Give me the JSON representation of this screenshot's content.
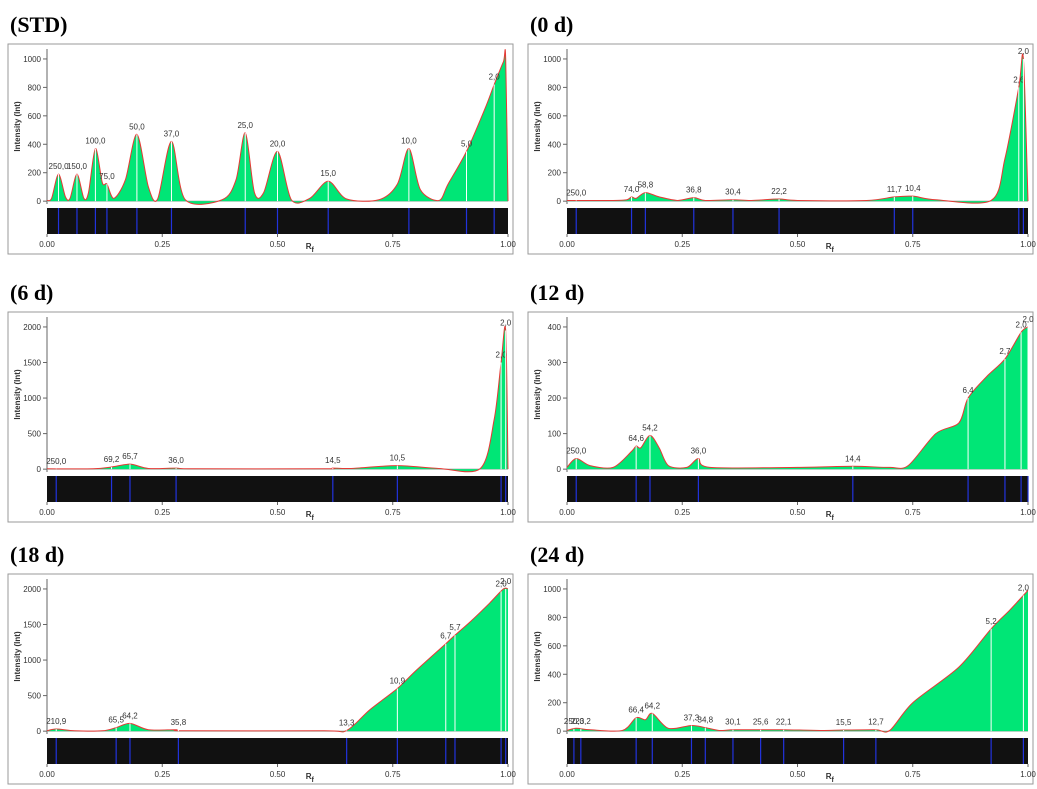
{
  "chart_data": [
    {
      "type": "area",
      "title": "(STD)",
      "y_label": "Intensity (Int)",
      "x_label": "R",
      "x_label_subscript": "f",
      "x": [
        0,
        0.01,
        0.025,
        0.04,
        0.05,
        0.065,
        0.08,
        0.09,
        0.105,
        0.12,
        0.13,
        0.145,
        0.17,
        0.195,
        0.22,
        0.24,
        0.27,
        0.3,
        0.38,
        0.41,
        0.43,
        0.45,
        0.47,
        0.5,
        0.53,
        0.57,
        0.61,
        0.65,
        0.72,
        0.76,
        0.785,
        0.81,
        0.85,
        0.87,
        0.91,
        0.95,
        0.97,
        0.99,
        0.995,
        1.0
      ],
      "values": [
        5,
        20,
        190,
        30,
        20,
        190,
        20,
        60,
        370,
        130,
        120,
        20,
        150,
        470,
        100,
        15,
        420,
        10,
        10,
        150,
        480,
        60,
        60,
        350,
        10,
        20,
        140,
        15,
        10,
        120,
        370,
        80,
        5,
        120,
        350,
        650,
        820,
        980,
        1000,
        0
      ],
      "annotations": [
        {
          "text": "250,0",
          "x": 0.025
        },
        {
          "text": "150,0",
          "x": 0.065
        },
        {
          "text": "100,0",
          "x": 0.105
        },
        {
          "text": "75,0",
          "x": 0.13
        },
        {
          "text": "50,0",
          "x": 0.195
        },
        {
          "text": "37,0",
          "x": 0.27
        },
        {
          "text": "25,0",
          "x": 0.43
        },
        {
          "text": "20,0",
          "x": 0.5
        },
        {
          "text": "15,0",
          "x": 0.61
        },
        {
          "text": "10,0",
          "x": 0.785
        },
        {
          "text": "5,0",
          "x": 0.91
        },
        {
          "text": "2,0",
          "x": 0.97
        }
      ],
      "xlim": [
        0,
        1
      ],
      "ylim": [
        -20,
        1070
      ],
      "yticks": [
        0,
        200,
        400,
        600,
        800,
        1000
      ],
      "xticks": [
        {
          "value": 0,
          "label": "0.00"
        },
        {
          "value": 0.25,
          "label": "0.25"
        },
        {
          "value": 0.5,
          "label": "0.50"
        },
        {
          "value": 0.75,
          "label": "0.75"
        },
        {
          "value": 1,
          "label": "1.00"
        }
      ],
      "fill_color": "#00e676",
      "line_color": "#e53935"
    },
    {
      "type": "area",
      "title": "(0 d)",
      "y_label": "Intensity (Int)",
      "x_label": "R",
      "x_label_subscript": "f",
      "x": [
        0,
        0.1,
        0.13,
        0.14,
        0.15,
        0.17,
        0.2,
        0.24,
        0.275,
        0.3,
        0.36,
        0.4,
        0.46,
        0.5,
        0.65,
        0.71,
        0.75,
        0.8,
        0.92,
        0.95,
        0.98,
        0.99,
        1.0
      ],
      "values": [
        5,
        5,
        10,
        30,
        20,
        60,
        30,
        5,
        25,
        5,
        10,
        5,
        15,
        5,
        5,
        30,
        35,
        10,
        5,
        300,
        800,
        1000,
        0
      ],
      "annotations": [
        {
          "text": "250,0",
          "x": 0.02
        },
        {
          "text": "74,0",
          "x": 0.14
        },
        {
          "text": "58,8",
          "x": 0.17
        },
        {
          "text": "36,8",
          "x": 0.275
        },
        {
          "text": "30,4",
          "x": 0.36
        },
        {
          "text": "22,2",
          "x": 0.46
        },
        {
          "text": "11,7",
          "x": 0.71
        },
        {
          "text": "10,4",
          "x": 0.75
        },
        {
          "text": "2,6",
          "x": 0.98
        },
        {
          "text": "2,0",
          "x": 0.99
        }
      ],
      "xlim": [
        0,
        1
      ],
      "ylim": [
        -20,
        1070
      ],
      "yticks": [
        0,
        200,
        400,
        600,
        800,
        1000
      ],
      "xticks": [
        {
          "value": 0,
          "label": "0.00"
        },
        {
          "value": 0.25,
          "label": "0.25"
        },
        {
          "value": 0.5,
          "label": "0.50"
        },
        {
          "value": 0.75,
          "label": "0.75"
        },
        {
          "value": 1,
          "label": "1.00"
        }
      ],
      "fill_color": "#00e676",
      "line_color": "#e53935"
    },
    {
      "type": "area",
      "title": "(6 d)",
      "y_label": "Intensity (Int)",
      "x_label": "R",
      "x_label_subscript": "f",
      "x": [
        0,
        0.1,
        0.14,
        0.18,
        0.22,
        0.28,
        0.32,
        0.6,
        0.62,
        0.66,
        0.76,
        0.85,
        0.94,
        0.97,
        0.985,
        0.995,
        1.0
      ],
      "values": [
        5,
        5,
        30,
        70,
        10,
        15,
        5,
        5,
        15,
        10,
        50,
        10,
        10,
        700,
        1500,
        1950,
        0
      ],
      "annotations": [
        {
          "text": "250,0",
          "x": 0.02
        },
        {
          "text": "69,2",
          "x": 0.14
        },
        {
          "text": "65,7",
          "x": 0.18
        },
        {
          "text": "36,0",
          "x": 0.28
        },
        {
          "text": "14,5",
          "x": 0.62
        },
        {
          "text": "10,5",
          "x": 0.76
        },
        {
          "text": "2,0",
          "x": 0.985
        },
        {
          "text": "2,0",
          "x": 0.995
        }
      ],
      "xlim": [
        0,
        1
      ],
      "ylim": [
        -40,
        2140
      ],
      "yticks": [
        0,
        500,
        1000,
        1500,
        2000
      ],
      "xticks": [
        {
          "value": 0,
          "label": "0.00"
        },
        {
          "value": 0.25,
          "label": "0.25"
        },
        {
          "value": 0.5,
          "label": "0.50"
        },
        {
          "value": 0.75,
          "label": "0.75"
        },
        {
          "value": 1,
          "label": "1.00"
        }
      ],
      "fill_color": "#00e676",
      "line_color": "#e53935"
    },
    {
      "type": "area",
      "title": "(12 d)",
      "y_label": "Intensity (Int)",
      "x_label": "R",
      "x_label_subscript": "f",
      "x": [
        0,
        0.02,
        0.05,
        0.1,
        0.14,
        0.15,
        0.16,
        0.18,
        0.2,
        0.22,
        0.26,
        0.285,
        0.31,
        0.5,
        0.62,
        0.7,
        0.74,
        0.8,
        0.85,
        0.87,
        0.91,
        0.95,
        0.985,
        1.0
      ],
      "values": [
        5,
        30,
        10,
        5,
        50,
        65,
        60,
        95,
        60,
        10,
        5,
        30,
        5,
        5,
        8,
        5,
        10,
        100,
        130,
        200,
        260,
        310,
        385,
        400
      ],
      "annotations": [
        {
          "text": "250,0",
          "x": 0.02
        },
        {
          "text": "64,6",
          "x": 0.15
        },
        {
          "text": "54,2",
          "x": 0.18
        },
        {
          "text": "36,0",
          "x": 0.285
        },
        {
          "text": "14,4",
          "x": 0.62
        },
        {
          "text": "6,4",
          "x": 0.87
        },
        {
          "text": "2,7",
          "x": 0.95
        },
        {
          "text": "2,0",
          "x": 0.985
        },
        {
          "text": "2,0",
          "x": 1.0
        }
      ],
      "xlim": [
        0,
        1
      ],
      "ylim": [
        -8,
        428
      ],
      "yticks": [
        0,
        100,
        200,
        300,
        400
      ],
      "xticks": [
        {
          "value": 0,
          "label": "0.00"
        },
        {
          "value": 0.25,
          "label": "0.25"
        },
        {
          "value": 0.5,
          "label": "0.50"
        },
        {
          "value": 0.75,
          "label": "0.75"
        },
        {
          "value": 1,
          "label": "1.00"
        }
      ],
      "fill_color": "#00e676",
      "line_color": "#e53935"
    },
    {
      "type": "area",
      "title": "(18 d)",
      "y_label": "Intensity (Int)",
      "x_label": "R",
      "x_label_subscript": "f",
      "x": [
        0,
        0.02,
        0.06,
        0.12,
        0.15,
        0.18,
        0.22,
        0.28,
        0.3,
        0.6,
        0.65,
        0.7,
        0.76,
        0.8,
        0.865,
        0.885,
        0.92,
        0.96,
        0.99,
        1.0
      ],
      "values": [
        5,
        30,
        5,
        5,
        50,
        110,
        20,
        20,
        5,
        5,
        10,
        300,
        600,
        850,
        1230,
        1350,
        1550,
        1800,
        2000,
        2000
      ],
      "annotations": [
        {
          "text": "210,9",
          "x": 0.02
        },
        {
          "text": "65,5",
          "x": 0.15
        },
        {
          "text": "64,2",
          "x": 0.18
        },
        {
          "text": "35,8",
          "x": 0.285
        },
        {
          "text": "13,3",
          "x": 0.65
        },
        {
          "text": "10,9",
          "x": 0.76
        },
        {
          "text": "6,7",
          "x": 0.865
        },
        {
          "text": "5,7",
          "x": 0.885
        },
        {
          "text": "2,0",
          "x": 0.985
        },
        {
          "text": "2,0",
          "x": 0.995
        }
      ],
      "xlim": [
        0,
        1
      ],
      "ylim": [
        -40,
        2140
      ],
      "yticks": [
        0,
        500,
        1000,
        1500,
        2000
      ],
      "xticks": [
        {
          "value": 0,
          "label": "0.00"
        },
        {
          "value": 0.25,
          "label": "0.25"
        },
        {
          "value": 0.5,
          "label": "0.50"
        },
        {
          "value": 0.75,
          "label": "0.75"
        },
        {
          "value": 1,
          "label": "1.00"
        }
      ],
      "fill_color": "#00e676",
      "line_color": "#e53935"
    },
    {
      "type": "area",
      "title": "(24 d)",
      "y_label": "Intensity (Int)",
      "x_label": "R",
      "x_label_subscript": "f",
      "x": [
        0,
        0.02,
        0.05,
        0.12,
        0.15,
        0.17,
        0.185,
        0.22,
        0.27,
        0.3,
        0.33,
        0.36,
        0.42,
        0.47,
        0.55,
        0.6,
        0.67,
        0.7,
        0.75,
        0.85,
        0.92,
        0.96,
        1.0
      ],
      "values": [
        5,
        20,
        10,
        5,
        95,
        80,
        125,
        20,
        40,
        25,
        5,
        10,
        10,
        10,
        5,
        8,
        10,
        5,
        200,
        450,
        720,
        850,
        990
      ],
      "annotations": [
        {
          "text": "250,0",
          "x": 0.015
        },
        {
          "text": "223,2",
          "x": 0.03
        },
        {
          "text": "66,4",
          "x": 0.15
        },
        {
          "text": "64,2",
          "x": 0.185
        },
        {
          "text": "37,3",
          "x": 0.27
        },
        {
          "text": "34,8",
          "x": 0.3
        },
        {
          "text": "30,1",
          "x": 0.36
        },
        {
          "text": "25,6",
          "x": 0.42
        },
        {
          "text": "22,1",
          "x": 0.47
        },
        {
          "text": "15,5",
          "x": 0.6
        },
        {
          "text": "12,7",
          "x": 0.67
        },
        {
          "text": "5,2",
          "x": 0.92
        },
        {
          "text": "2,0",
          "x": 0.99
        }
      ],
      "xlim": [
        0,
        1
      ],
      "ylim": [
        -20,
        1070
      ],
      "yticks": [
        0,
        200,
        400,
        600,
        800,
        1000
      ],
      "xticks": [
        {
          "value": 0,
          "label": "0.00"
        },
        {
          "value": 0.25,
          "label": "0.25"
        },
        {
          "value": 0.5,
          "label": "0.50"
        },
        {
          "value": 0.75,
          "label": "0.75"
        },
        {
          "value": 1,
          "label": "1.00"
        }
      ],
      "fill_color": "#00e676",
      "line_color": "#e53935"
    }
  ]
}
